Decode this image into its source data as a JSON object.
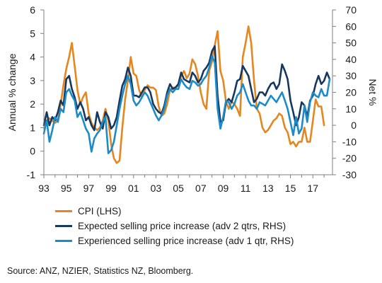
{
  "chart_data": {
    "type": "line",
    "left_axis": {
      "label": "Annual % change",
      "min": -1,
      "max": 6,
      "ticks": [
        -1,
        0,
        1,
        2,
        3,
        4,
        5,
        6
      ]
    },
    "right_axis": {
      "label": "Net %",
      "min": -30,
      "max": 70,
      "ticks": [
        -30,
        -20,
        -10,
        0,
        10,
        20,
        30,
        40,
        50,
        60,
        70
      ]
    },
    "x_axis": {
      "min": 1993,
      "max": 2018.75,
      "tick_labels": [
        "93",
        "95",
        "97",
        "99",
        "01",
        "03",
        "05",
        "07",
        "09",
        "11",
        "13",
        "15",
        "17"
      ],
      "tick_years": [
        1993,
        1995,
        1997,
        1999,
        2001,
        2003,
        2005,
        2007,
        2009,
        2011,
        2013,
        2015,
        2017
      ]
    },
    "grid": false,
    "legend_position": "bottom",
    "series": [
      {
        "name": "CPI (LHS)",
        "axis": "left",
        "color": "#E6861E",
        "x": [
          1993,
          1993.25,
          1993.5,
          1993.75,
          1994,
          1994.25,
          1994.5,
          1994.75,
          1995,
          1995.25,
          1995.5,
          1995.75,
          1996,
          1996.25,
          1996.5,
          1996.75,
          1997,
          1997.25,
          1997.5,
          1997.75,
          1998,
          1998.25,
          1998.5,
          1998.75,
          1999,
          1999.25,
          1999.5,
          1999.75,
          2000,
          2000.25,
          2000.5,
          2000.75,
          2001,
          2001.25,
          2001.5,
          2001.75,
          2002,
          2002.25,
          2002.5,
          2002.75,
          2003,
          2003.25,
          2003.5,
          2003.75,
          2004,
          2004.25,
          2004.5,
          2004.75,
          2005,
          2005.25,
          2005.5,
          2005.75,
          2006,
          2006.25,
          2006.5,
          2006.75,
          2007,
          2007.25,
          2007.5,
          2007.75,
          2008,
          2008.25,
          2008.5,
          2008.75,
          2009,
          2009.25,
          2009.5,
          2009.75,
          2010,
          2010.25,
          2010.5,
          2010.75,
          2011,
          2011.25,
          2011.5,
          2011.75,
          2012,
          2012.25,
          2012.5,
          2012.75,
          2013,
          2013.25,
          2013.5,
          2013.75,
          2014,
          2014.25,
          2014.5,
          2014.75,
          2015,
          2015.25,
          2015.5,
          2015.75,
          2016,
          2016.25,
          2016.5,
          2016.75,
          2017,
          2017.25,
          2017.5,
          2017.75,
          2018
        ],
        "y": [
          1.2,
          1.3,
          1.4,
          1.3,
          1.2,
          1.3,
          2.0,
          2.8,
          3.5,
          4.0,
          4.6,
          3.6,
          2.6,
          2.0,
          2.3,
          2.5,
          1.6,
          1.2,
          1.0,
          0.9,
          1.0,
          1.3,
          1.8,
          1.3,
          0.3,
          -0.3,
          -0.5,
          -0.4,
          1.0,
          2.2,
          3.0,
          4.0,
          3.3,
          3.2,
          2.6,
          2.3,
          2.6,
          2.8,
          2.7,
          2.7,
          2.6,
          1.9,
          1.5,
          1.6,
          2.0,
          2.6,
          2.7,
          2.7,
          2.8,
          3.2,
          3.4,
          3.1,
          3.3,
          3.9,
          3.7,
          3.2,
          2.5,
          2.0,
          1.8,
          3.4,
          3.8,
          4.5,
          5.1,
          3.4,
          3.0,
          2.1,
          1.8,
          2.1,
          2.0,
          1.8,
          1.5,
          4.0,
          4.6,
          5.3,
          4.6,
          3.0,
          1.8,
          1.6,
          1.0,
          0.8,
          0.9,
          1.1,
          1.3,
          1.4,
          1.6,
          1.5,
          1.0,
          0.8,
          0.3,
          0.4,
          0.2,
          0.4,
          0.4,
          1.0,
          0.4,
          0.4,
          1.3,
          2.2,
          1.9,
          1.9,
          1.1
        ]
      },
      {
        "name": "Expected selling price increase (adv 2 qtrs, RHS)",
        "axis": "right",
        "color": "#17375E",
        "x": [
          1993,
          1993.25,
          1993.5,
          1993.75,
          1994,
          1994.25,
          1994.5,
          1994.75,
          1995,
          1995.25,
          1995.5,
          1995.75,
          1996,
          1996.25,
          1996.5,
          1996.75,
          1997,
          1997.25,
          1997.5,
          1997.75,
          1998,
          1998.25,
          1998.5,
          1998.75,
          1999,
          1999.25,
          1999.5,
          1999.75,
          2000,
          2000.25,
          2000.5,
          2000.75,
          2001,
          2001.25,
          2001.5,
          2001.75,
          2002,
          2002.25,
          2002.5,
          2002.75,
          2003,
          2003.25,
          2003.5,
          2003.75,
          2004,
          2004.25,
          2004.5,
          2004.75,
          2005,
          2005.25,
          2005.5,
          2005.75,
          2006,
          2006.25,
          2006.5,
          2006.75,
          2007,
          2007.25,
          2007.5,
          2007.75,
          2008,
          2008.25,
          2008.5,
          2008.75,
          2009,
          2009.25,
          2009.5,
          2009.75,
          2010,
          2010.25,
          2010.5,
          2010.75,
          2011,
          2011.25,
          2011.5,
          2011.75,
          2012,
          2012.25,
          2012.5,
          2012.75,
          2013,
          2013.25,
          2013.5,
          2013.75,
          2014,
          2014.25,
          2014.5,
          2014.75,
          2015,
          2015.25,
          2015.5,
          2015.75,
          2016,
          2016.25,
          2016.5,
          2016.75,
          2017,
          2017.25,
          2017.5,
          2017.75,
          2018,
          2018.25,
          2018.5
        ],
        "y": [
          0,
          8,
          0,
          5,
          3,
          8,
          15,
          12,
          28,
          30,
          22,
          17,
          10,
          14,
          10,
          3,
          5,
          0,
          -3,
          8,
          2,
          -2,
          8,
          5,
          -2,
          0,
          5,
          15,
          24,
          28,
          35,
          30,
          18,
          18,
          17,
          20,
          23,
          23,
          20,
          13,
          10,
          8,
          7,
          12,
          20,
          25,
          22,
          23,
          25,
          32,
          28,
          27,
          26,
          32,
          30,
          26,
          28,
          33,
          35,
          38,
          45,
          48,
          18,
          2,
          3,
          14,
          16,
          14,
          20,
          27,
          28,
          36,
          33,
          30,
          22,
          14,
          16,
          20,
          20,
          18,
          22,
          25,
          26,
          22,
          25,
          37,
          33,
          28,
          15,
          8,
          0,
          5,
          14,
          12,
          5,
          15,
          18,
          25,
          30,
          25,
          27,
          32,
          28
        ]
      },
      {
        "name": "Experienced selling price increase (adv 1 qtr, RHS)",
        "axis": "right",
        "color": "#1B8BC9",
        "x": [
          1993,
          1993.25,
          1993.5,
          1993.75,
          1994,
          1994.25,
          1994.5,
          1994.75,
          1995,
          1995.25,
          1995.5,
          1995.75,
          1996,
          1996.25,
          1996.5,
          1996.75,
          1997,
          1997.25,
          1997.5,
          1997.75,
          1998,
          1998.25,
          1998.5,
          1998.75,
          1999,
          1999.25,
          1999.5,
          1999.75,
          2000,
          2000.25,
          2000.5,
          2000.75,
          2001,
          2001.25,
          2001.5,
          2001.75,
          2002,
          2002.25,
          2002.5,
          2002.75,
          2003,
          2003.25,
          2003.5,
          2003.75,
          2004,
          2004.25,
          2004.5,
          2004.75,
          2005,
          2005.25,
          2005.5,
          2005.75,
          2006,
          2006.25,
          2006.5,
          2006.75,
          2007,
          2007.25,
          2007.5,
          2007.75,
          2008,
          2008.25,
          2008.5,
          2008.75,
          2009,
          2009.25,
          2009.5,
          2009.75,
          2010,
          2010.25,
          2010.5,
          2010.75,
          2011,
          2011.25,
          2011.5,
          2011.75,
          2012,
          2012.25,
          2012.5,
          2012.75,
          2013,
          2013.25,
          2013.5,
          2013.75,
          2014,
          2014.25,
          2014.5,
          2014.75,
          2015,
          2015.25,
          2015.5,
          2015.75,
          2016,
          2016.25,
          2016.5,
          2016.75,
          2017,
          2017.25,
          2017.5,
          2017.75,
          2018,
          2018.25,
          2018.5
        ],
        "y": [
          -5,
          3,
          -10,
          -3,
          5,
          2,
          10,
          8,
          20,
          22,
          18,
          15,
          5,
          8,
          3,
          -2,
          -5,
          -16,
          -8,
          -5,
          -3,
          2,
          5,
          -17,
          -15,
          -10,
          0,
          10,
          18,
          25,
          30,
          25,
          15,
          12,
          14,
          17,
          20,
          18,
          14,
          10,
          6,
          3,
          6,
          10,
          18,
          22,
          20,
          22,
          22,
          28,
          25,
          23,
          22,
          27,
          26,
          24,
          25,
          28,
          30,
          35,
          42,
          38,
          10,
          -2,
          5,
          15,
          14,
          10,
          13,
          18,
          20,
          25,
          20,
          15,
          12,
          12,
          10,
          14,
          13,
          12,
          15,
          18,
          16,
          14,
          17,
          20,
          15,
          10,
          2,
          -6,
          5,
          -5,
          -2,
          12,
          2,
          14,
          20,
          18,
          17,
          22,
          18,
          18,
          28
        ]
      }
    ],
    "source": "Source: ANZ, NZIER, Statistics NZ, Bloomberg."
  }
}
